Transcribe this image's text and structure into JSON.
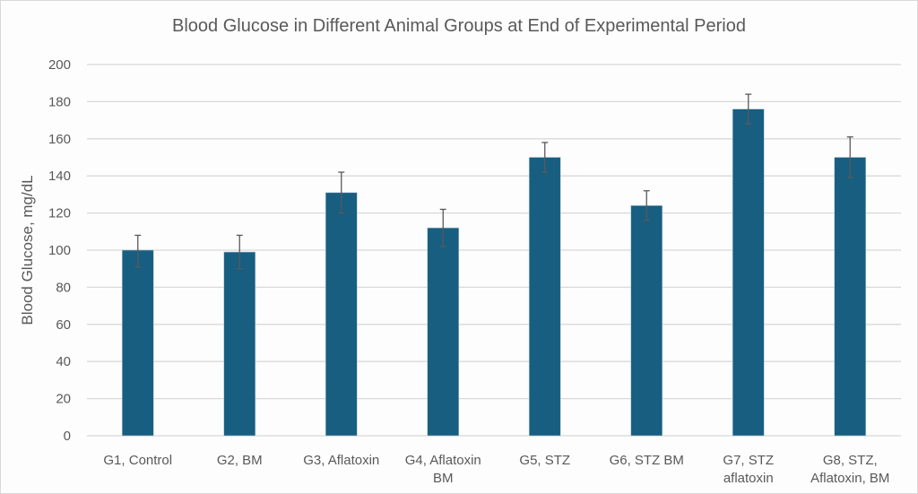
{
  "chart_data": {
    "type": "bar",
    "title": "Blood Glucose in Different Animal Groups at End of Experimental Period",
    "xlabel": "",
    "ylabel": "Blood Glucose, mg/dL",
    "ylim": [
      0,
      200
    ],
    "yticks": [
      0,
      20,
      40,
      60,
      80,
      100,
      120,
      140,
      160,
      180,
      200
    ],
    "grid": true,
    "legend": "none",
    "bar_color": "#175e80",
    "error_color": "#595959",
    "categories": [
      [
        "G1, Control"
      ],
      [
        "G2, BM"
      ],
      [
        "G3, Aflatoxin"
      ],
      [
        "G4, Aflatoxin",
        "BM"
      ],
      [
        "G5, STZ"
      ],
      [
        "G6, STZ BM"
      ],
      [
        "G7, STZ",
        "aflatoxin"
      ],
      [
        "G8, STZ,",
        "Aflatoxin, BM"
      ]
    ],
    "values": [
      100,
      99,
      131,
      112,
      150,
      124,
      176,
      150
    ],
    "error_upper": [
      108,
      108,
      142,
      122,
      158,
      132,
      184,
      161
    ],
    "error_lower": [
      91,
      90,
      120,
      102,
      142,
      116,
      168,
      139
    ]
  }
}
